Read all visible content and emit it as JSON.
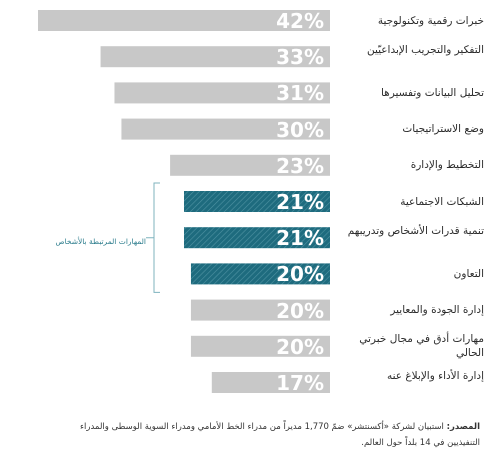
{
  "chart_data": {
    "type": "bar",
    "orientation": "horizontal",
    "categories": [
      "خبرات رقمية وتكنولوجية",
      "التفكير والتجريب الإبداعيّين",
      "تحليل البيانات وتفسيرها",
      "وضع الاستراتيجيات",
      "التخطيط والإدارة",
      "الشبكات الاجتماعية",
      "تنمية قدرات الأشخاص وتدريبهم",
      "التعاون",
      "إدارة الجودة والمعايير",
      "مهارات أدق في مجال خبرتي الحالي",
      "إدارة الأداء والإبلاغ عنه"
    ],
    "values": [
      42,
      33,
      31,
      30,
      23,
      21,
      21,
      20,
      20,
      20,
      17
    ],
    "value_labels": [
      "42%",
      "33%",
      "31%",
      "30%",
      "23%",
      "21%",
      "21%",
      "20%",
      "20%",
      "20%",
      "17%"
    ],
    "highlighted": [
      5,
      6,
      7
    ],
    "group_label": "المهارات المرتبطة بالأشخاص",
    "xlim": [
      0,
      42
    ]
  },
  "colors": {
    "bar": "#c8c8c8",
    "highlight": "#1e6b7e",
    "label_light": "#ffffff",
    "label_dark": "#ffffff",
    "bracket": "#7fb3be"
  },
  "source": {
    "prefix": "المصدر:",
    "text": "استبيان لشركة «أكسنتشر» ضمّ 1,770 مديراً من مدراء الخط الأمامي ومدراء السوية الوسطى والمدراء التنفيذيين في 14 بلداً حول العالم."
  }
}
